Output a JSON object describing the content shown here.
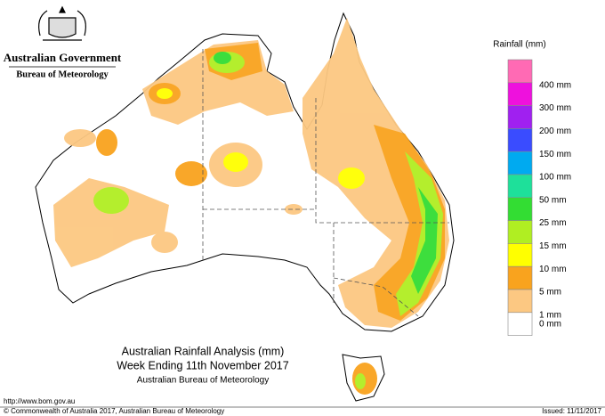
{
  "header": {
    "government": "Australian Government",
    "agency": "Bureau of Meteorology"
  },
  "map_title": {
    "line1": "Australian Rainfall Analysis (mm)",
    "line2": "Week Ending 11th November 2017",
    "line3": "Australian Bureau of Meteorology"
  },
  "legend": {
    "title": "Rainfall (mm)",
    "items": [
      {
        "label": "400 mm",
        "color": "#ff6ab4"
      },
      {
        "label": "300 mm",
        "color": "#ee11dd"
      },
      {
        "label": "200 mm",
        "color": "#a020f0"
      },
      {
        "label": "150 mm",
        "color": "#3a4cff"
      },
      {
        "label": "100 mm",
        "color": "#00aaf0"
      },
      {
        "label": "50 mm",
        "color": "#1ee09a"
      },
      {
        "label": "25 mm",
        "color": "#33dd33"
      },
      {
        "label": "15 mm",
        "color": "#b0ee22"
      },
      {
        "label": "10 mm",
        "color": "#ffff00"
      },
      {
        "label": "5 mm",
        "color": "#f9a31e"
      },
      {
        "label": "1 mm",
        "color": "#fcc882"
      },
      {
        "label": "0 mm",
        "color": "#ffffff"
      }
    ]
  },
  "footer": {
    "url": "http://www.bom.gov.au",
    "copyright": "© Commonwealth of Australia 2017, Australian Bureau of Meteorology",
    "issued": "Issued: 11/11/2017"
  }
}
